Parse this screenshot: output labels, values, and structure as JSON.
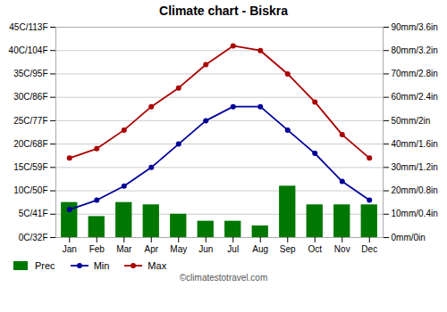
{
  "chart_data": {
    "type": "bar",
    "title": "Climate chart - Biskra",
    "caption": "©climatestotravel.com",
    "categories": [
      "Jan",
      "Feb",
      "Mar",
      "Apr",
      "May",
      "Jun",
      "Jul",
      "Aug",
      "Sep",
      "Oct",
      "Nov",
      "Dec"
    ],
    "series": [
      {
        "name": "Prec",
        "type": "bar",
        "axis": "y2",
        "color": "#007700",
        "values": [
          15,
          9,
          15,
          14,
          10,
          7,
          7,
          5,
          22,
          14,
          14,
          14
        ]
      },
      {
        "name": "Min",
        "type": "line",
        "marker": "circle",
        "color": "#000099",
        "values": [
          6,
          8,
          11,
          15,
          20,
          25,
          28,
          28,
          23,
          18,
          12,
          8
        ]
      },
      {
        "name": "Max",
        "type": "line",
        "marker": "circle",
        "color": "#aa0000",
        "values": [
          17,
          19,
          23,
          28,
          32,
          37,
          41,
          40,
          35,
          29,
          22,
          17
        ]
      }
    ],
    "ylim": [
      0,
      45
    ],
    "yticks": [
      {
        "value": 0,
        "label": "0C/32F"
      },
      {
        "value": 5,
        "label": "5C/41F"
      },
      {
        "value": 10,
        "label": "10C/50F"
      },
      {
        "value": 15,
        "label": "15C/59F"
      },
      {
        "value": 20,
        "label": "20C/68F"
      },
      {
        "value": 25,
        "label": "25C/77F"
      },
      {
        "value": 30,
        "label": "30C/86F"
      },
      {
        "value": 35,
        "label": "35C/95F"
      },
      {
        "value": 40,
        "label": "40C/104F"
      },
      {
        "value": 45,
        "label": "45C/113F"
      }
    ],
    "y2lim": [
      0,
      90
    ],
    "y2ticks": [
      {
        "value": 0,
        "label": "0mm/0in"
      },
      {
        "value": 10,
        "label": "10mm/0.4in"
      },
      {
        "value": 20,
        "label": "20mm/0.8in"
      },
      {
        "value": 30,
        "label": "30mm/1.2in"
      },
      {
        "value": 40,
        "label": "40mm/1.6in"
      },
      {
        "value": 50,
        "label": "50mm/2in"
      },
      {
        "value": 60,
        "label": "60mm/2.4in"
      },
      {
        "value": 70,
        "label": "70mm/2.8in"
      },
      {
        "value": 80,
        "label": "80mm/3.2in"
      },
      {
        "value": 90,
        "label": "90mm/3.6in"
      }
    ],
    "grid": true,
    "legend": "bottom"
  }
}
